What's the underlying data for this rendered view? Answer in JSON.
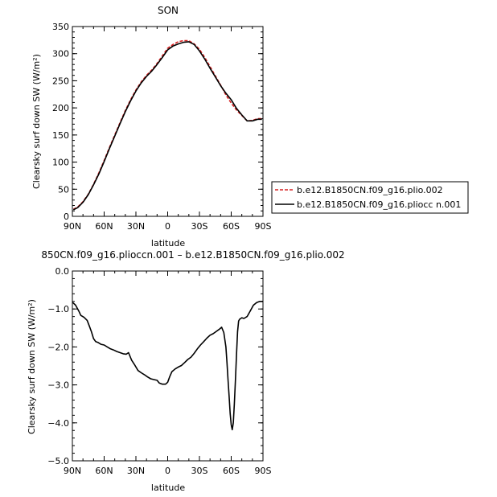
{
  "chart_data": [
    {
      "type": "line",
      "title": "SON",
      "xlabel": "latitude",
      "ylabel": "Clearsky surf down SW (W/m²)",
      "xlim": [
        90,
        -90
      ],
      "ylim": [
        0,
        350
      ],
      "x_ticks": [
        "90N",
        "60N",
        "30N",
        "0",
        "30S",
        "60S",
        "90S"
      ],
      "y_ticks": [
        "0",
        "50",
        "100",
        "150",
        "200",
        "250",
        "300",
        "350"
      ],
      "legend_position": "right",
      "series": [
        {
          "name": "b.e12.B1850CN.f09_g16.plio.002",
          "color": "#d62020",
          "style": "dashed",
          "x": [
            89,
            85,
            80,
            75,
            70,
            65,
            60,
            55,
            50,
            45,
            40,
            35,
            30,
            25,
            20,
            15,
            10,
            5,
            0,
            -5,
            -10,
            -15,
            -20,
            -25,
            -30,
            -35,
            -40,
            -45,
            -50,
            -55,
            -60,
            -65,
            -70,
            -75,
            -80,
            -85,
            -89
          ],
          "y": [
            13,
            17,
            27,
            41,
            59,
            80,
            103,
            127,
            150,
            173,
            195,
            215,
            233,
            248,
            260,
            270,
            282,
            296,
            310,
            317,
            322,
            324,
            324,
            318,
            308,
            293,
            276,
            259,
            242,
            224,
            209,
            196,
            186,
            176,
            177,
            180,
            180
          ]
        },
        {
          "name": "b.e12.B1850CN.f09_g16.pliocc n.001",
          "color": "#000000",
          "style": "solid",
          "x": [
            89,
            85,
            80,
            75,
            70,
            65,
            60,
            55,
            50,
            45,
            40,
            35,
            30,
            25,
            20,
            15,
            10,
            5,
            0,
            -5,
            -10,
            -15,
            -20,
            -25,
            -30,
            -35,
            -40,
            -45,
            -50,
            -55,
            -60,
            -65,
            -70,
            -75,
            -80,
            -85,
            -89
          ],
          "y": [
            12,
            16,
            26,
            40,
            58,
            78,
            101,
            125,
            148,
            171,
            193,
            213,
            231,
            246,
            258,
            268,
            280,
            293,
            307,
            314,
            318,
            321,
            322,
            317,
            305,
            290,
            273,
            257,
            241,
            227,
            215,
            199,
            187,
            176,
            176,
            179,
            179
          ]
        }
      ]
    },
    {
      "type": "line",
      "title": "850CN.f09_g16.plioccn.001 – b.e12.B1850CN.f09_g16.plio.002",
      "xlabel": "latitude",
      "ylabel": "Clearsky surf down SW (W/m²)",
      "xlim": [
        90,
        -90
      ],
      "ylim": [
        -5.0,
        0.0
      ],
      "x_ticks": [
        "90N",
        "60N",
        "30N",
        "0",
        "30S",
        "60S",
        "90S"
      ],
      "y_ticks": [
        "0.0",
        "−1.0",
        "−2.0",
        "−3.0",
        "−4.0",
        "−5.0"
      ],
      "series": [
        {
          "color": "#000000",
          "style": "solid",
          "x": [
            90,
            87,
            84,
            82,
            79,
            76,
            74,
            72,
            70,
            68,
            66,
            63,
            60,
            57,
            54,
            51,
            48,
            45,
            42,
            39,
            37,
            34,
            31,
            28,
            25,
            22,
            19,
            16,
            13,
            10,
            8,
            5,
            2,
            0,
            -2,
            -4,
            -7,
            -10,
            -13,
            -16,
            -19,
            -22,
            -25,
            -28,
            -31,
            -34,
            -37,
            -40,
            -43,
            -46,
            -49,
            -51,
            -53,
            -55,
            -56,
            -57,
            -58,
            -59,
            -60,
            -61,
            -62,
            -63,
            -64,
            -65,
            -66,
            -67,
            -68,
            -69,
            -70,
            -72,
            -75,
            -78,
            -81,
            -84,
            -87,
            -90
          ],
          "y": [
            -0.82,
            -0.9,
            -1.05,
            -1.17,
            -1.22,
            -1.3,
            -1.45,
            -1.6,
            -1.78,
            -1.86,
            -1.88,
            -1.93,
            -1.95,
            -2.0,
            -2.05,
            -2.08,
            -2.12,
            -2.15,
            -2.18,
            -2.19,
            -2.15,
            -2.35,
            -2.48,
            -2.62,
            -2.68,
            -2.73,
            -2.79,
            -2.84,
            -2.86,
            -2.88,
            -2.95,
            -2.98,
            -2.98,
            -2.93,
            -2.78,
            -2.65,
            -2.58,
            -2.53,
            -2.49,
            -2.41,
            -2.33,
            -2.27,
            -2.17,
            -2.05,
            -1.95,
            -1.86,
            -1.77,
            -1.69,
            -1.65,
            -1.59,
            -1.53,
            -1.48,
            -1.62,
            -2.0,
            -2.4,
            -2.85,
            -3.3,
            -3.75,
            -4.05,
            -4.18,
            -4.0,
            -3.5,
            -2.85,
            -2.2,
            -1.6,
            -1.32,
            -1.27,
            -1.25,
            -1.23,
            -1.25,
            -1.2,
            -1.05,
            -0.9,
            -0.83,
            -0.8,
            -0.8
          ]
        }
      ]
    }
  ]
}
